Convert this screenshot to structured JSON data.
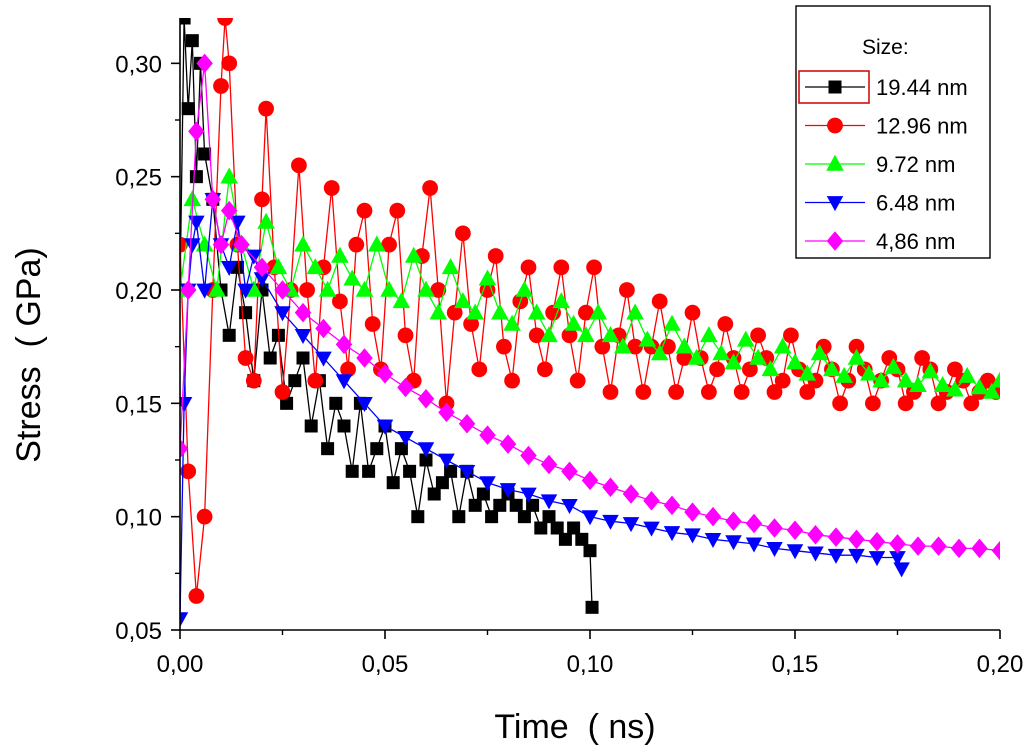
{
  "chart_data": {
    "type": "scatter",
    "title": "",
    "xlabel": "Time  ( ns)",
    "ylabel": "Stress  ( GPa)",
    "xlim": [
      0.0,
      0.2
    ],
    "ylim": [
      0.05,
      0.32
    ],
    "x_ticks": [
      0.0,
      0.05,
      0.1,
      0.15,
      0.2
    ],
    "x_tick_labels": [
      "0,00",
      "0,05",
      "0,10",
      "0,15",
      "0,20"
    ],
    "y_ticks": [
      0.05,
      0.1,
      0.15,
      0.2,
      0.25,
      0.3
    ],
    "y_tick_labels": [
      "0,05",
      "0,10",
      "0,15",
      "0,20",
      "0,25",
      "0,30"
    ],
    "grid": false,
    "legend_title": "Size:",
    "legend_position": "top-right",
    "series": [
      {
        "name": "19.44 nm",
        "color": "#000000",
        "marker": "square",
        "x": [
          0.0,
          0.001,
          0.002,
          0.003,
          0.004,
          0.005,
          0.006,
          0.008,
          0.01,
          0.012,
          0.014,
          0.016,
          0.018,
          0.02,
          0.022,
          0.024,
          0.026,
          0.028,
          0.03,
          0.032,
          0.034,
          0.036,
          0.038,
          0.04,
          0.042,
          0.044,
          0.046,
          0.048,
          0.05,
          0.052,
          0.054,
          0.056,
          0.058,
          0.06,
          0.062,
          0.064,
          0.066,
          0.068,
          0.07,
          0.072,
          0.074,
          0.076,
          0.078,
          0.08,
          0.082,
          0.084,
          0.086,
          0.088,
          0.09,
          0.092,
          0.094,
          0.096,
          0.098,
          0.1,
          0.1005
        ],
        "y": [
          0.2,
          0.32,
          0.28,
          0.31,
          0.25,
          0.3,
          0.26,
          0.24,
          0.2,
          0.18,
          0.21,
          0.19,
          0.16,
          0.2,
          0.17,
          0.18,
          0.15,
          0.16,
          0.17,
          0.14,
          0.16,
          0.13,
          0.15,
          0.14,
          0.12,
          0.15,
          0.12,
          0.13,
          0.14,
          0.115,
          0.13,
          0.12,
          0.1,
          0.125,
          0.11,
          0.115,
          0.12,
          0.1,
          0.12,
          0.105,
          0.11,
          0.1,
          0.105,
          0.11,
          0.105,
          0.1,
          0.105,
          0.095,
          0.1,
          0.095,
          0.09,
          0.095,
          0.09,
          0.085,
          0.06
        ]
      },
      {
        "name": "12.96 nm",
        "color": "#ff0000",
        "marker": "circle",
        "x": [
          0.0,
          0.002,
          0.004,
          0.006,
          0.008,
          0.01,
          0.011,
          0.012,
          0.014,
          0.016,
          0.018,
          0.02,
          0.021,
          0.023,
          0.025,
          0.027,
          0.029,
          0.031,
          0.033,
          0.035,
          0.037,
          0.039,
          0.041,
          0.043,
          0.045,
          0.047,
          0.049,
          0.051,
          0.053,
          0.055,
          0.057,
          0.059,
          0.061,
          0.063,
          0.065,
          0.067,
          0.069,
          0.071,
          0.073,
          0.075,
          0.077,
          0.079,
          0.081,
          0.083,
          0.085,
          0.087,
          0.089,
          0.091,
          0.093,
          0.095,
          0.097,
          0.099,
          0.101,
          0.103,
          0.105,
          0.107,
          0.109,
          0.111,
          0.113,
          0.115,
          0.117,
          0.119,
          0.121,
          0.123,
          0.125,
          0.127,
          0.129,
          0.131,
          0.133,
          0.135,
          0.137,
          0.139,
          0.141,
          0.143,
          0.145,
          0.147,
          0.149,
          0.151,
          0.153,
          0.155,
          0.157,
          0.159,
          0.161,
          0.163,
          0.165,
          0.167,
          0.169,
          0.171,
          0.173,
          0.175,
          0.177,
          0.179,
          0.181,
          0.183,
          0.185,
          0.187,
          0.189,
          0.191,
          0.193,
          0.195,
          0.197,
          0.199
        ],
        "y": [
          0.22,
          0.12,
          0.065,
          0.1,
          0.2,
          0.29,
          0.32,
          0.3,
          0.22,
          0.17,
          0.16,
          0.24,
          0.28,
          0.21,
          0.155,
          0.2,
          0.255,
          0.2,
          0.16,
          0.21,
          0.245,
          0.195,
          0.165,
          0.22,
          0.235,
          0.185,
          0.165,
          0.22,
          0.235,
          0.18,
          0.16,
          0.215,
          0.245,
          0.2,
          0.15,
          0.19,
          0.225,
          0.185,
          0.165,
          0.2,
          0.215,
          0.175,
          0.16,
          0.195,
          0.21,
          0.18,
          0.165,
          0.19,
          0.21,
          0.18,
          0.16,
          0.19,
          0.21,
          0.175,
          0.155,
          0.18,
          0.2,
          0.175,
          0.155,
          0.175,
          0.195,
          0.175,
          0.155,
          0.17,
          0.19,
          0.17,
          0.155,
          0.165,
          0.185,
          0.17,
          0.155,
          0.165,
          0.18,
          0.17,
          0.155,
          0.16,
          0.18,
          0.165,
          0.155,
          0.16,
          0.175,
          0.165,
          0.15,
          0.16,
          0.175,
          0.165,
          0.15,
          0.16,
          0.17,
          0.165,
          0.15,
          0.155,
          0.17,
          0.165,
          0.15,
          0.155,
          0.165,
          0.16,
          0.15,
          0.155,
          0.16,
          0.155
        ]
      },
      {
        "name": "9.72 nm",
        "color": "#00ff00",
        "marker": "triangle-up",
        "x": [
          0.0,
          0.003,
          0.006,
          0.009,
          0.012,
          0.015,
          0.018,
          0.021,
          0.024,
          0.027,
          0.03,
          0.033,
          0.036,
          0.039,
          0.042,
          0.045,
          0.048,
          0.051,
          0.054,
          0.057,
          0.06,
          0.063,
          0.066,
          0.069,
          0.072,
          0.075,
          0.078,
          0.081,
          0.084,
          0.087,
          0.09,
          0.093,
          0.096,
          0.099,
          0.102,
          0.105,
          0.108,
          0.111,
          0.114,
          0.117,
          0.12,
          0.123,
          0.126,
          0.129,
          0.132,
          0.135,
          0.138,
          0.141,
          0.144,
          0.147,
          0.15,
          0.153,
          0.156,
          0.159,
          0.162,
          0.165,
          0.168,
          0.171,
          0.174,
          0.177,
          0.18,
          0.183,
          0.186,
          0.189,
          0.192,
          0.195,
          0.198,
          0.2
        ],
        "y": [
          0.2,
          0.24,
          0.22,
          0.2,
          0.25,
          0.22,
          0.2,
          0.23,
          0.21,
          0.2,
          0.22,
          0.21,
          0.2,
          0.215,
          0.205,
          0.2,
          0.22,
          0.2,
          0.195,
          0.215,
          0.2,
          0.19,
          0.21,
          0.195,
          0.19,
          0.205,
          0.19,
          0.185,
          0.2,
          0.19,
          0.18,
          0.195,
          0.185,
          0.18,
          0.19,
          0.18,
          0.175,
          0.19,
          0.178,
          0.172,
          0.185,
          0.175,
          0.17,
          0.18,
          0.172,
          0.168,
          0.178,
          0.17,
          0.165,
          0.175,
          0.168,
          0.163,
          0.172,
          0.165,
          0.162,
          0.17,
          0.163,
          0.16,
          0.166,
          0.16,
          0.158,
          0.164,
          0.158,
          0.156,
          0.162,
          0.157,
          0.155,
          0.16
        ]
      },
      {
        "name": "6.48 nm",
        "color": "#0000ff",
        "marker": "triangle-down",
        "x": [
          0.0,
          0.001,
          0.002,
          0.003,
          0.004,
          0.006,
          0.008,
          0.01,
          0.012,
          0.014,
          0.016,
          0.018,
          0.02,
          0.025,
          0.03,
          0.035,
          0.04,
          0.045,
          0.05,
          0.055,
          0.06,
          0.065,
          0.07,
          0.075,
          0.08,
          0.085,
          0.09,
          0.095,
          0.1,
          0.105,
          0.11,
          0.115,
          0.12,
          0.125,
          0.13,
          0.135,
          0.14,
          0.145,
          0.15,
          0.155,
          0.16,
          0.165,
          0.17,
          0.175,
          0.176
        ],
        "y": [
          0.055,
          0.15,
          0.2,
          0.22,
          0.23,
          0.2,
          0.24,
          0.22,
          0.21,
          0.23,
          0.2,
          0.215,
          0.205,
          0.19,
          0.18,
          0.17,
          0.16,
          0.15,
          0.14,
          0.135,
          0.13,
          0.125,
          0.12,
          0.115,
          0.112,
          0.11,
          0.107,
          0.105,
          0.1,
          0.098,
          0.097,
          0.095,
          0.093,
          0.092,
          0.09,
          0.089,
          0.088,
          0.086,
          0.085,
          0.084,
          0.083,
          0.083,
          0.082,
          0.082,
          0.077
        ]
      },
      {
        "name": "4,86 nm",
        "color": "#ff00ff",
        "marker": "diamond",
        "x": [
          0.0,
          0.002,
          0.004,
          0.006,
          0.008,
          0.01,
          0.012,
          0.015,
          0.02,
          0.025,
          0.03,
          0.035,
          0.04,
          0.045,
          0.05,
          0.055,
          0.06,
          0.065,
          0.07,
          0.075,
          0.08,
          0.085,
          0.09,
          0.095,
          0.1,
          0.105,
          0.11,
          0.115,
          0.12,
          0.125,
          0.13,
          0.135,
          0.14,
          0.145,
          0.15,
          0.155,
          0.16,
          0.165,
          0.17,
          0.175,
          0.18,
          0.185,
          0.19,
          0.195,
          0.2
        ],
        "y": [
          0.13,
          0.2,
          0.27,
          0.3,
          0.24,
          0.22,
          0.235,
          0.22,
          0.21,
          0.2,
          0.19,
          0.183,
          0.176,
          0.17,
          0.163,
          0.157,
          0.152,
          0.146,
          0.141,
          0.136,
          0.132,
          0.127,
          0.123,
          0.12,
          0.116,
          0.113,
          0.11,
          0.107,
          0.105,
          0.102,
          0.1,
          0.098,
          0.097,
          0.095,
          0.094,
          0.092,
          0.091,
          0.09,
          0.089,
          0.088,
          0.087,
          0.087,
          0.086,
          0.086,
          0.085
        ]
      }
    ]
  }
}
